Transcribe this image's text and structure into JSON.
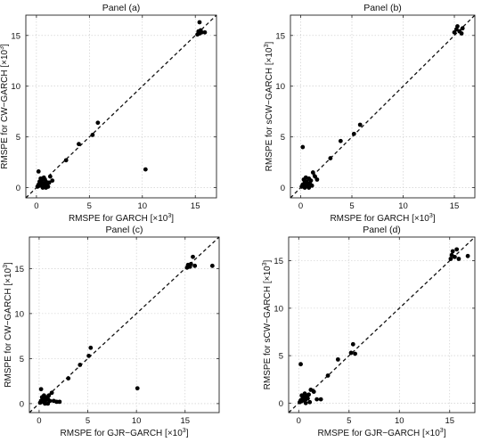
{
  "chart_data": [
    {
      "type": "scatter",
      "title": "Panel (a)",
      "xlabel": "RMSPE for GARCH [×10³]",
      "ylabel": "RMSPE for CW−GARCH [×10³]",
      "xlim": [
        -1,
        17
      ],
      "ylim": [
        -1,
        17
      ],
      "xticks": [
        0,
        5,
        10,
        15
      ],
      "yticks": [
        0,
        5,
        10,
        15
      ],
      "grid": true,
      "reference_line": "y = x (dashed)",
      "points": [
        [
          0.1,
          0.1
        ],
        [
          0.2,
          0.3
        ],
        [
          0.3,
          0.2
        ],
        [
          0.4,
          0.5
        ],
        [
          0.5,
          0.3
        ],
        [
          0.6,
          0.1
        ],
        [
          0.7,
          0.4
        ],
        [
          0.8,
          0.2
        ],
        [
          0.9,
          0.6
        ],
        [
          1.0,
          0.3
        ],
        [
          0.3,
          0.6
        ],
        [
          0.5,
          0.7
        ],
        [
          0.2,
          1.6
        ],
        [
          0.7,
          1.0
        ],
        [
          1.2,
          0.5
        ],
        [
          1.5,
          0.7
        ],
        [
          0.6,
          0.0
        ],
        [
          1.1,
          0.1
        ],
        [
          1.3,
          1.1
        ],
        [
          0.4,
          0.9
        ],
        [
          0.8,
          0.8
        ],
        [
          0.9,
          0.0
        ],
        [
          2.8,
          2.7
        ],
        [
          4.0,
          4.3
        ],
        [
          5.3,
          5.2
        ],
        [
          5.8,
          6.4
        ],
        [
          10.3,
          1.8
        ],
        [
          15.2,
          15.1
        ],
        [
          15.3,
          15.4
        ],
        [
          15.4,
          15.2
        ],
        [
          15.5,
          15.5
        ],
        [
          15.6,
          15.3
        ],
        [
          15.4,
          16.3
        ],
        [
          15.9,
          15.3
        ]
      ]
    },
    {
      "type": "scatter",
      "title": "Panel (b)",
      "xlabel": "RMSPE for GARCH [×10³]",
      "ylabel": "RMSPE for sCW−GARCH [×10³]",
      "xlim": [
        -1,
        17
      ],
      "ylim": [
        -1,
        17
      ],
      "xticks": [
        0,
        5,
        10,
        15
      ],
      "yticks": [
        0,
        5,
        10,
        15
      ],
      "grid": true,
      "reference_line": "y = x (dashed)",
      "points": [
        [
          0.1,
          0.1
        ],
        [
          0.2,
          0.3
        ],
        [
          0.3,
          0.2
        ],
        [
          0.4,
          0.5
        ],
        [
          0.5,
          0.2
        ],
        [
          0.6,
          0.6
        ],
        [
          0.7,
          0.3
        ],
        [
          0.8,
          0.9
        ],
        [
          0.9,
          0.4
        ],
        [
          1.0,
          0.7
        ],
        [
          1.2,
          1.5
        ],
        [
          1.4,
          1.1
        ],
        [
          1.6,
          0.8
        ],
        [
          0.3,
          0.8
        ],
        [
          0.5,
          1.0
        ],
        [
          0.8,
          0.0
        ],
        [
          1.1,
          0.2
        ],
        [
          0.4,
          0.0
        ],
        [
          0.2,
          4.0
        ],
        [
          2.9,
          2.9
        ],
        [
          3.9,
          4.6
        ],
        [
          5.2,
          5.3
        ],
        [
          5.8,
          6.2
        ],
        [
          15.0,
          15.3
        ],
        [
          15.2,
          15.6
        ],
        [
          15.3,
          15.9
        ],
        [
          15.5,
          15.4
        ],
        [
          15.7,
          15.2
        ],
        [
          15.8,
          15.7
        ]
      ]
    },
    {
      "type": "scatter",
      "title": "Panel (c)",
      "xlabel": "RMSPE for GJR−GARCH [×10³]",
      "ylabel": "RMSPE for CW−GARCH [×10³]",
      "xlim": [
        -1,
        18.5
      ],
      "ylim": [
        -1,
        18.5
      ],
      "xticks": [
        0,
        5,
        10,
        15
      ],
      "yticks": [
        0,
        5,
        10,
        15
      ],
      "grid": true,
      "reference_line": "y = x (dashed)",
      "points": [
        [
          0.1,
          0.1
        ],
        [
          0.2,
          0.3
        ],
        [
          0.3,
          0.2
        ],
        [
          0.4,
          0.5
        ],
        [
          0.5,
          0.3
        ],
        [
          0.6,
          0.6
        ],
        [
          0.7,
          0.4
        ],
        [
          0.8,
          0.7
        ],
        [
          0.9,
          0.5
        ],
        [
          1.0,
          0.9
        ],
        [
          1.1,
          0.3
        ],
        [
          1.3,
          1.2
        ],
        [
          0.3,
          0.7
        ],
        [
          0.5,
          0.9
        ],
        [
          0.2,
          1.6
        ],
        [
          1.5,
          0.3
        ],
        [
          1.8,
          0.2
        ],
        [
          2.1,
          0.2
        ],
        [
          0.6,
          0.0
        ],
        [
          0.9,
          0.0
        ],
        [
          3.0,
          2.8
        ],
        [
          4.2,
          4.3
        ],
        [
          5.1,
          5.3
        ],
        [
          5.3,
          6.2
        ],
        [
          10.1,
          1.7
        ],
        [
          15.2,
          15.1
        ],
        [
          15.3,
          15.4
        ],
        [
          15.5,
          15.2
        ],
        [
          15.6,
          15.5
        ],
        [
          15.8,
          16.3
        ],
        [
          16.0,
          15.3
        ],
        [
          17.8,
          15.3
        ]
      ]
    },
    {
      "type": "scatter",
      "title": "Panel (d)",
      "xlabel": "RMSPE for GJR−GARCH [×10³]",
      "ylabel": "RMSPE for sCW−GARCH [×10³]",
      "xlim": [
        -1,
        17.5
      ],
      "ylim": [
        -1,
        17.5
      ],
      "xticks": [
        0,
        5,
        10,
        15
      ],
      "yticks": [
        0,
        5,
        10,
        15
      ],
      "grid": true,
      "reference_line": "y = x (dashed)",
      "points": [
        [
          0.1,
          0.1
        ],
        [
          0.2,
          0.3
        ],
        [
          0.3,
          0.2
        ],
        [
          0.4,
          0.5
        ],
        [
          0.5,
          0.3
        ],
        [
          0.6,
          0.6
        ],
        [
          0.7,
          0.4
        ],
        [
          0.8,
          0.8
        ],
        [
          0.9,
          0.5
        ],
        [
          1.0,
          0.9
        ],
        [
          1.2,
          1.4
        ],
        [
          1.5,
          1.2
        ],
        [
          1.8,
          0.4
        ],
        [
          2.2,
          0.4
        ],
        [
          0.3,
          0.8
        ],
        [
          0.6,
          1.0
        ],
        [
          0.2,
          4.1
        ],
        [
          0.7,
          0.0
        ],
        [
          1.1,
          0.1
        ],
        [
          2.9,
          2.9
        ],
        [
          3.9,
          4.6
        ],
        [
          5.2,
          5.3
        ],
        [
          5.4,
          6.2
        ],
        [
          5.6,
          5.2
        ],
        [
          15.1,
          15.2
        ],
        [
          15.2,
          15.6
        ],
        [
          15.3,
          16.0
        ],
        [
          15.5,
          15.4
        ],
        [
          15.7,
          16.2
        ],
        [
          15.9,
          15.2
        ],
        [
          16.8,
          15.5
        ]
      ]
    }
  ]
}
